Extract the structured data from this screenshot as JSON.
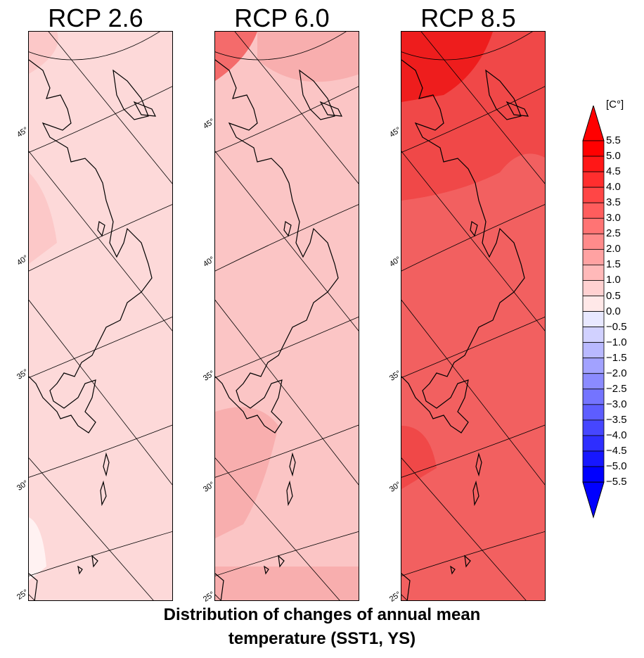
{
  "panels": [
    {
      "title": "RCP 2.6",
      "base_color": "#fdd9d9",
      "shade_color": "#fcc8c8",
      "light_color": "#fff2f2"
    },
    {
      "title": "RCP 6.0",
      "base_color": "#fbc5c5",
      "shade_color": "#f8aeae",
      "dark_color": "#f46b6b"
    },
    {
      "title": "RCP 8.5",
      "base_color": "#f26060",
      "shade_color": "#f04848",
      "dark_color": "#ee1d1d"
    }
  ],
  "latitude_labels": [
    "45°",
    "40°",
    "35°",
    "30°",
    "25°"
  ],
  "colorbar": {
    "unit": "[C°]",
    "ticks": [
      "5.5",
      "5.0",
      "4.5",
      "4.0",
      "3.5",
      "3.0",
      "2.5",
      "2.0",
      "1.5",
      "1.0",
      "0.5",
      "0.0",
      "−0.5",
      "−1.0",
      "−1.5",
      "−2.0",
      "−2.5",
      "−3.0",
      "−3.5",
      "−4.0",
      "−4.5",
      "−5.0",
      "−5.5"
    ],
    "warm_color": "#ff0000",
    "cool_color": "#0000ff"
  },
  "caption": {
    "line1": "Distribution of changes of annual mean",
    "line2": "temperature (SST1, YS)"
  }
}
